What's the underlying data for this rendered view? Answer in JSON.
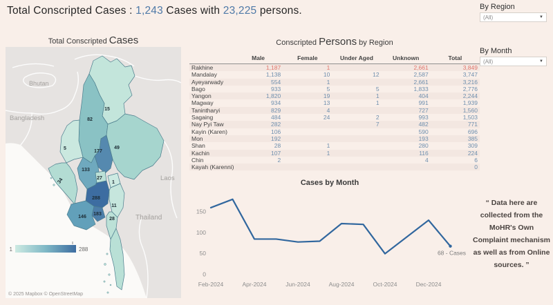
{
  "header": {
    "title_prefix": "Total Conscripted Cases : ",
    "cases_count": "1,243",
    "title_middle": " Cases with ",
    "persons_count": "23,225",
    "title_suffix": " persons."
  },
  "filters": {
    "region": {
      "label": "By Region",
      "value": "(All)"
    },
    "month": {
      "label": "By Month",
      "value": "(All)"
    }
  },
  "map": {
    "title_small": "Total Conscripted ",
    "title_large": "Cases",
    "legend": {
      "min": "1",
      "max": "288"
    },
    "attribution": "© 2025 Mapbox © OpenStreetMap",
    "country_labels": [
      "Bhutan",
      "Bangladesh",
      "Laos",
      "Thailand"
    ],
    "regions": [
      {
        "name": "Kachin",
        "cases": "15"
      },
      {
        "name": "Sagaing",
        "cases": "82"
      },
      {
        "name": "Chin",
        "cases": "5"
      },
      {
        "name": "Shan",
        "cases": "49"
      },
      {
        "name": "Mandalay",
        "cases": "177"
      },
      {
        "name": "Magway",
        "cases": "133"
      },
      {
        "name": "Rakhine",
        "cases": "34"
      },
      {
        "name": "Nay Pyi Taw",
        "cases": "27"
      },
      {
        "name": "Kayah",
        "cases": "1"
      },
      {
        "name": "Bago",
        "cases": "288"
      },
      {
        "name": "Kayin",
        "cases": "11"
      },
      {
        "name": "Yangon",
        "cases": "183"
      },
      {
        "name": "Ayeyarwady",
        "cases": "146"
      },
      {
        "name": "Mon",
        "cases": "28"
      }
    ]
  },
  "table": {
    "title_small_1": "Conscripted ",
    "title_large": "Persons",
    "title_small_2": " by Region",
    "columns": [
      "",
      "Male",
      "Female",
      "Under Aged",
      "Unknown",
      "Total"
    ],
    "highlighted_region": "Rakhine",
    "rows": [
      {
        "region": "Rakhine",
        "male": "1,187",
        "female": "1",
        "under_aged": "",
        "unknown": "2,661",
        "total": "3,849"
      },
      {
        "region": "Mandalay",
        "male": "1,138",
        "female": "10",
        "under_aged": "12",
        "unknown": "2,587",
        "total": "3,747"
      },
      {
        "region": "Ayeyarwady",
        "male": "554",
        "female": "1",
        "under_aged": "",
        "unknown": "2,661",
        "total": "3,216"
      },
      {
        "region": "Bago",
        "male": "933",
        "female": "5",
        "under_aged": "5",
        "unknown": "1,833",
        "total": "2,776"
      },
      {
        "region": "Yangon",
        "male": "1,820",
        "female": "19",
        "under_aged": "1",
        "unknown": "404",
        "total": "2,244"
      },
      {
        "region": "Magway",
        "male": "934",
        "female": "13",
        "under_aged": "1",
        "unknown": "991",
        "total": "1,939"
      },
      {
        "region": "Tanintharyi",
        "male": "829",
        "female": "4",
        "under_aged": "",
        "unknown": "727",
        "total": "1,560"
      },
      {
        "region": "Sagaing",
        "male": "484",
        "female": "24",
        "under_aged": "2",
        "unknown": "993",
        "total": "1,503"
      },
      {
        "region": "Nay Pyi Taw",
        "male": "282",
        "female": "",
        "under_aged": "7",
        "unknown": "482",
        "total": "771"
      },
      {
        "region": "Kayin (Karen)",
        "male": "106",
        "female": "",
        "under_aged": "",
        "unknown": "590",
        "total": "696"
      },
      {
        "region": "Mon",
        "male": "192",
        "female": "",
        "under_aged": "",
        "unknown": "193",
        "total": "385"
      },
      {
        "region": "Shan",
        "male": "28",
        "female": "1",
        "under_aged": "",
        "unknown": "280",
        "total": "309"
      },
      {
        "region": "Kachin",
        "male": "107",
        "female": "1",
        "under_aged": "",
        "unknown": "116",
        "total": "224"
      },
      {
        "region": "Chin",
        "male": "2",
        "female": "",
        "under_aged": "",
        "unknown": "4",
        "total": "6"
      },
      {
        "region": "Kayah (Karenni)",
        "male": "",
        "female": "",
        "under_aged": "",
        "unknown": "",
        "total": "0"
      }
    ]
  },
  "chart_data": {
    "type": "line",
    "title": "Cases by Month",
    "x": [
      "Feb-2024",
      "Mar-2024",
      "Apr-2024",
      "May-2024",
      "Jun-2024",
      "Jul-2024",
      "Aug-2024",
      "Sep-2024",
      "Oct-2024",
      "Nov-2024",
      "Dec-2024",
      "Jan-2025"
    ],
    "values": [
      160,
      180,
      85,
      85,
      78,
      80,
      122,
      120,
      50,
      90,
      130,
      68
    ],
    "x_tick_labels": [
      "Feb-2024",
      "Apr-2024",
      "Jun-2024",
      "Aug-2024",
      "Oct-2024",
      "Dec-2024"
    ],
    "y_ticks": [
      0,
      50,
      100,
      150
    ],
    "ylim": [
      0,
      195
    ],
    "grid": false,
    "legend": "none",
    "annotation": "68 - Cases",
    "line_color": "#31679e"
  },
  "note": {
    "text": "“ Data here are collected from the MoHR's Own Complaint mechanism as well as from Online sources. ”"
  }
}
